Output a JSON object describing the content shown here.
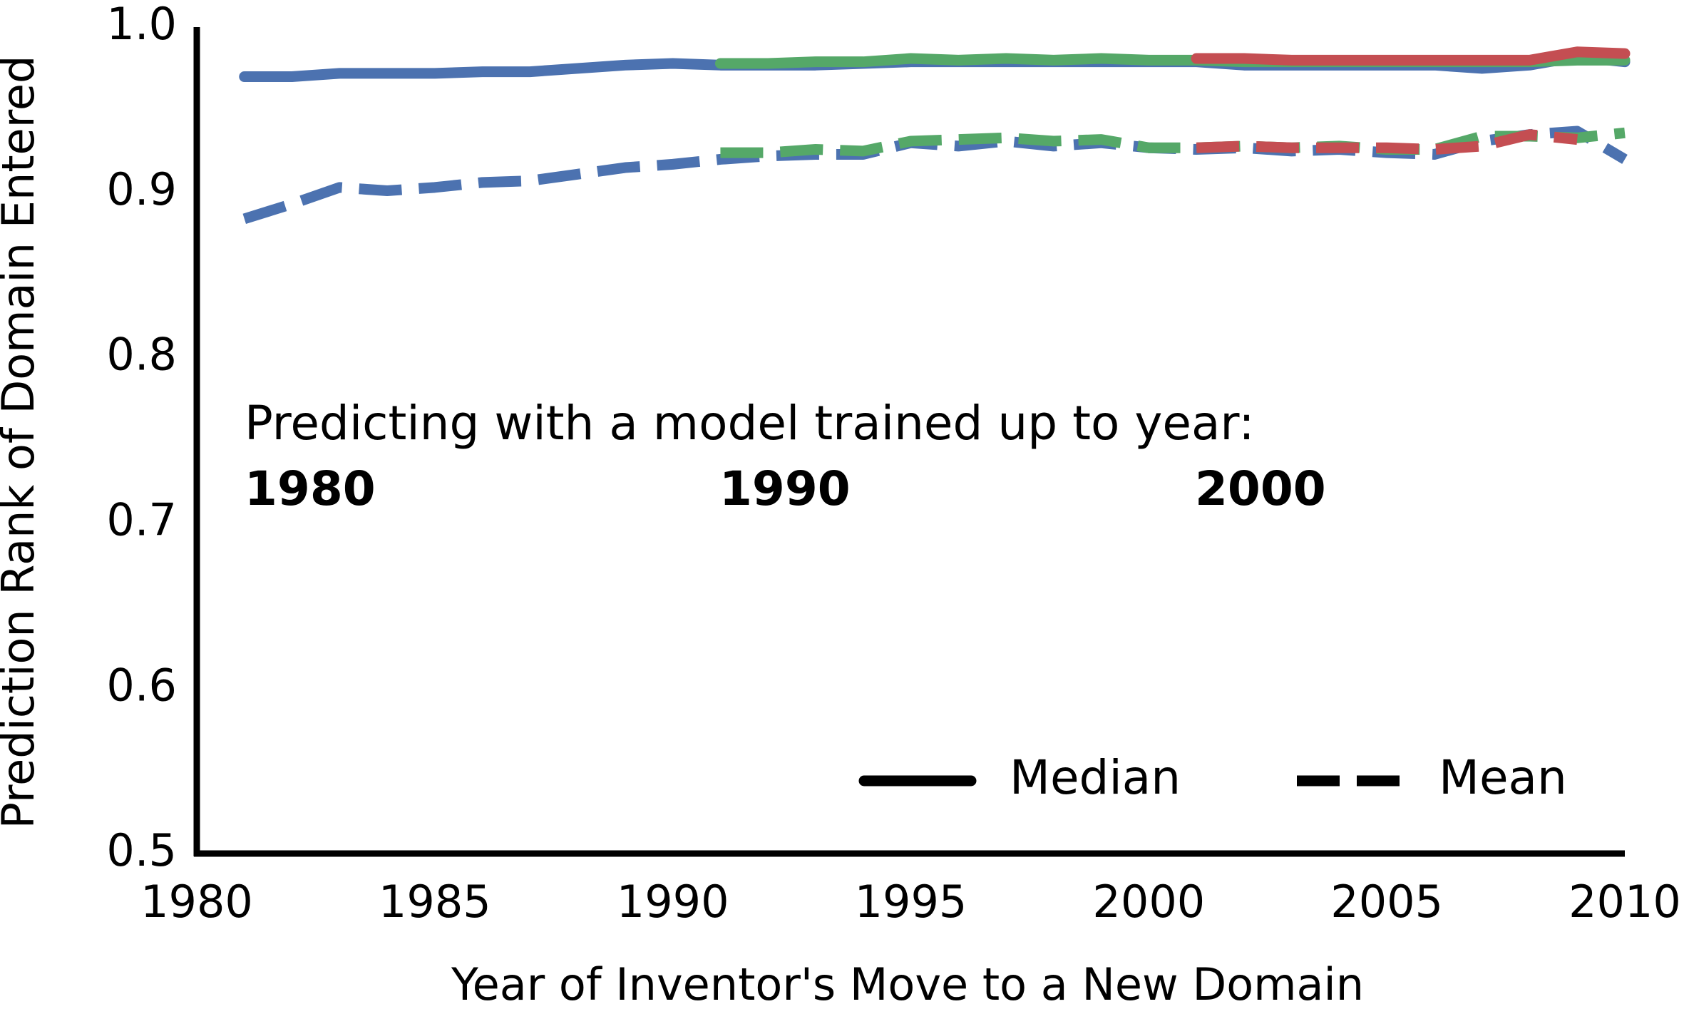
{
  "chart_data": {
    "type": "line",
    "xlabel": "Year of Inventor's Move to a New Domain",
    "ylabel": "Prediction Rank of Domain Entered",
    "x": [
      1981,
      1982,
      1983,
      1984,
      1985,
      1986,
      1987,
      1988,
      1989,
      1990,
      1991,
      1992,
      1993,
      1994,
      1995,
      1996,
      1997,
      1998,
      1999,
      2000,
      2001,
      2002,
      2003,
      2004,
      2005,
      2006,
      2007,
      2008,
      2009,
      2010
    ],
    "xlim": [
      1980,
      2010
    ],
    "xticks": [
      1980,
      1985,
      1990,
      1995,
      2000,
      2005,
      2010
    ],
    "ylim": [
      0.5,
      1.0
    ],
    "yticks": [
      0.5,
      0.6,
      0.7,
      0.8,
      0.9,
      {
        "value": 1.0,
        "label": "1.0"
      }
    ],
    "series": [
      {
        "color": "#4c72b0",
        "style": "solid",
        "values": [
          0.97,
          0.97,
          0.972,
          0.972,
          0.972,
          0.973,
          0.973,
          0.975,
          0.977,
          0.978,
          0.977,
          0.977,
          0.977,
          0.978,
          0.979,
          0.979,
          0.979,
          0.979,
          0.979,
          0.979,
          0.979,
          0.977,
          0.977,
          0.977,
          0.977,
          0.977,
          0.975,
          0.977,
          0.982,
          0.979
        ]
      },
      {
        "color": "#4c72b0",
        "style": "dashed",
        "values": [
          0.884,
          0.893,
          0.903,
          0.901,
          0.903,
          0.906,
          0.907,
          0.911,
          0.915,
          0.917,
          0.92,
          0.922,
          0.923,
          0.923,
          0.93,
          0.928,
          0.931,
          0.928,
          0.93,
          0.927,
          0.926,
          0.927,
          0.925,
          0.926,
          0.924,
          0.923,
          0.931,
          0.935,
          0.937,
          0.92
        ]
      },
      {
        "color": "#55a868",
        "style": "solid",
        "values": [
          null,
          null,
          null,
          null,
          null,
          null,
          null,
          null,
          null,
          null,
          0.978,
          0.978,
          0.979,
          0.979,
          0.981,
          0.98,
          0.981,
          0.98,
          0.981,
          0.98,
          0.98,
          0.979,
          0.979,
          0.979,
          0.979,
          0.979,
          0.979,
          0.979,
          0.98,
          0.98
        ]
      },
      {
        "color": "#55a868",
        "style": "dashed",
        "values": [
          null,
          null,
          null,
          null,
          null,
          null,
          null,
          null,
          null,
          null,
          0.924,
          0.924,
          0.926,
          0.925,
          0.931,
          0.932,
          0.933,
          0.931,
          0.932,
          0.927,
          0.927,
          0.928,
          0.927,
          0.928,
          0.926,
          0.926,
          0.934,
          0.934,
          0.933,
          0.936
        ]
      },
      {
        "color": "#c44e52",
        "style": "solid",
        "values": [
          null,
          null,
          null,
          null,
          null,
          null,
          null,
          null,
          null,
          null,
          null,
          null,
          null,
          null,
          null,
          null,
          null,
          null,
          null,
          null,
          0.981,
          0.981,
          0.98,
          0.98,
          0.98,
          0.98,
          0.98,
          0.98,
          0.985,
          0.984
        ]
      },
      {
        "color": "#c44e52",
        "style": "dashed",
        "values": [
          null,
          null,
          null,
          null,
          null,
          null,
          null,
          null,
          null,
          null,
          null,
          null,
          null,
          null,
          null,
          null,
          null,
          null,
          null,
          null,
          0.927,
          0.928,
          0.927,
          0.927,
          0.927,
          0.926,
          0.928,
          0.935,
          0.932,
          null
        ]
      }
    ],
    "annotation": "Predicting with a model trained up to year:",
    "models": [
      {
        "label": "1980",
        "color": "#4c72b0"
      },
      {
        "label": "1990",
        "color": "#55a868"
      },
      {
        "label": "2000",
        "color": "#c44e52"
      }
    ],
    "legend": [
      {
        "label": "Median",
        "style": "solid"
      },
      {
        "label": "Mean",
        "style": "dashed"
      }
    ],
    "legend_position": "lower right"
  }
}
